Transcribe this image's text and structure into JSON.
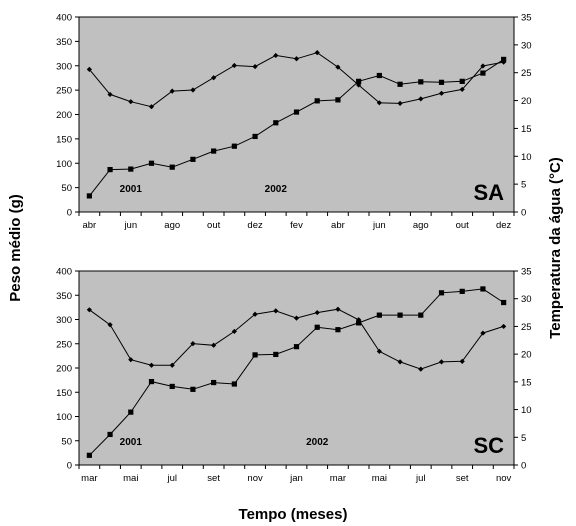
{
  "labels": {
    "y_left": "Peso médio (g)",
    "y_right": "Temperatura da água (°C)",
    "x": "Tempo (meses)"
  },
  "colors": {
    "plot_background": "#c0c0c0",
    "series": "#000000"
  },
  "chart_data": [
    {
      "type": "line",
      "panel_label": "SA",
      "years": [
        {
          "label": "2001",
          "at_index": 2
        },
        {
          "label": "2002",
          "at_index": 9
        }
      ],
      "categories": [
        "abr",
        "mai",
        "jun",
        "jul",
        "ago",
        "set",
        "out",
        "nov",
        "dez",
        "jan",
        "fev",
        "mar",
        "abr",
        "mai",
        "jun",
        "jul",
        "ago",
        "set",
        "out",
        "nov",
        "dez"
      ],
      "x_tick_labels": [
        "abr",
        "",
        "jun",
        "",
        "ago",
        "",
        "out",
        "",
        "dez",
        "",
        "fev",
        "",
        "abr",
        "",
        "jun",
        "",
        "ago",
        "",
        "out",
        "",
        "dez"
      ],
      "y_left_lim": [
        0,
        400
      ],
      "y_left_ticks": [
        0,
        50,
        100,
        150,
        200,
        250,
        300,
        350,
        400
      ],
      "y_right_lim": [
        0,
        35
      ],
      "y_right_ticks": [
        0,
        5,
        10,
        15,
        20,
        25,
        30,
        35
      ],
      "series": [
        {
          "axis": "left",
          "marker": "square",
          "values": [
            33,
            87,
            88,
            100,
            92,
            108,
            125,
            135,
            155,
            183,
            205,
            228,
            230,
            268,
            280,
            262,
            267,
            266,
            268,
            285,
            313
          ]
        },
        {
          "axis": "right",
          "marker": "diamond",
          "values": [
            25.6,
            21.1,
            19.8,
            18.9,
            21.7,
            21.9,
            24.1,
            26.3,
            26.1,
            28.1,
            27.5,
            28.6,
            26.0,
            22.8,
            19.6,
            19.5,
            20.3,
            21.3,
            22.0,
            26.2,
            26.9
          ]
        }
      ]
    },
    {
      "type": "line",
      "panel_label": "SC",
      "years": [
        {
          "label": "2001",
          "at_index": 2
        },
        {
          "label": "2002",
          "at_index": 11
        }
      ],
      "categories": [
        "mar",
        "abr",
        "mai",
        "jun",
        "jul",
        "ago",
        "set",
        "out",
        "nov",
        "dez",
        "jan",
        "fev",
        "mar",
        "abr",
        "mai",
        "jun",
        "jul",
        "ago",
        "set",
        "out",
        "nov"
      ],
      "x_tick_labels": [
        "mar",
        "",
        "mai",
        "",
        "jul",
        "",
        "set",
        "",
        "nov",
        "",
        "jan",
        "",
        "mar",
        "",
        "mai",
        "",
        "jul",
        "",
        "set",
        "",
        "nov"
      ],
      "y_left_lim": [
        0,
        400
      ],
      "y_left_ticks": [
        0,
        50,
        100,
        150,
        200,
        250,
        300,
        350,
        400
      ],
      "y_right_lim": [
        0,
        35
      ],
      "y_right_ticks": [
        0,
        5,
        10,
        15,
        20,
        25,
        30,
        35
      ],
      "series": [
        {
          "axis": "left",
          "marker": "square",
          "values": [
            20,
            63,
            109,
            172,
            162,
            156,
            170,
            167,
            227,
            228,
            244,
            284,
            279,
            293,
            309,
            309,
            309,
            355,
            358,
            363,
            335
          ]
        },
        {
          "axis": "right",
          "marker": "diamond",
          "values": [
            28.0,
            25.3,
            19.0,
            18.0,
            18.0,
            21.9,
            21.6,
            24.1,
            27.2,
            27.8,
            26.5,
            27.5,
            28.1,
            26.2,
            20.5,
            18.6,
            17.3,
            18.6,
            18.7,
            23.8,
            25.0
          ]
        }
      ]
    }
  ]
}
